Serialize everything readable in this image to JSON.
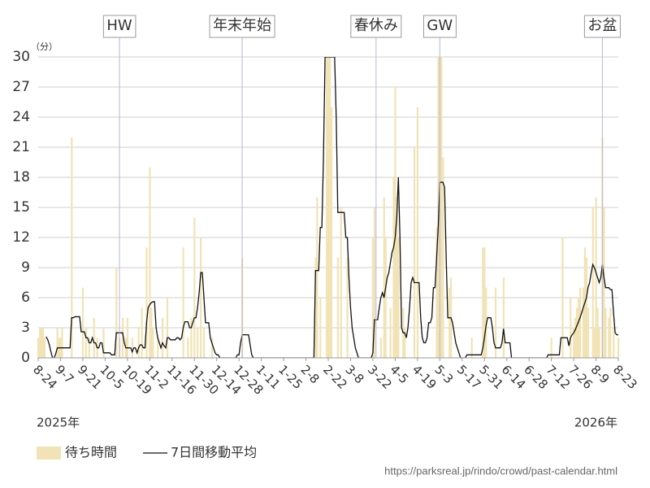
{
  "chart_data": {
    "type": "bar",
    "y_unit": "（分）",
    "years": [
      "2025年",
      "2026年"
    ],
    "source": "https://parksreal.jp/rindo/crowd/past-calendar.html",
    "ylim": [
      0,
      30
    ],
    "yticks": [
      0,
      3,
      6,
      9,
      12,
      15,
      18,
      21,
      24,
      27,
      30
    ],
    "grid": true,
    "annotations": [
      {
        "label": "HW",
        "x": 51
      },
      {
        "label": "年末年始",
        "x": 128
      },
      {
        "label": "春休み",
        "x": 212
      },
      {
        "label": "GW",
        "x": 252
      },
      {
        "label": "お盆",
        "x": 354
      }
    ],
    "categories": [
      "8-24",
      null,
      null,
      null,
      null,
      null,
      null,
      null,
      null,
      null,
      null,
      null,
      null,
      null,
      "9-7",
      null,
      null,
      null,
      null,
      null,
      null,
      null,
      null,
      null,
      null,
      null,
      null,
      null,
      "9-21",
      null,
      null,
      null,
      null,
      null,
      null,
      null,
      null,
      null,
      null,
      null,
      null,
      null,
      "10-5",
      null,
      null,
      null,
      null,
      null,
      null,
      null,
      null,
      null,
      null,
      null,
      null,
      null,
      "10-19",
      null,
      null,
      null,
      null,
      null,
      null,
      null,
      null,
      null,
      null,
      null,
      null,
      null,
      "11-2",
      null,
      null,
      null,
      null,
      null,
      null,
      null,
      null,
      null,
      null,
      null,
      null,
      null,
      "11-16",
      null,
      null,
      null,
      null,
      null,
      null,
      null,
      null,
      null,
      null,
      null,
      null,
      null,
      "11-30",
      null,
      null,
      null,
      null,
      null,
      null,
      null,
      null,
      null,
      null,
      null,
      null,
      null,
      "12-14",
      null,
      null,
      null,
      null,
      null,
      null,
      null,
      null,
      null,
      null,
      null,
      null,
      null,
      "12-28",
      null,
      null,
      null,
      null,
      null,
      null,
      null,
      null,
      null,
      null,
      null,
      null,
      null,
      "1-11",
      null,
      null,
      null,
      null,
      null,
      null,
      null,
      null,
      null,
      null,
      null,
      null,
      null,
      "1-25",
      null,
      null,
      null,
      null,
      null,
      null,
      null,
      null,
      null,
      null,
      null,
      null,
      null,
      "2-8",
      null,
      null,
      null,
      null,
      null,
      null,
      null,
      null,
      null,
      null,
      null,
      null,
      null,
      "2-22",
      null,
      null,
      null,
      null,
      null,
      null,
      null,
      null,
      null,
      null,
      null,
      null,
      null,
      "3-8",
      null,
      null,
      null,
      null,
      null,
      null,
      null,
      null,
      null,
      null,
      null,
      null,
      null,
      "3-22",
      null,
      null,
      null,
      null,
      null,
      null,
      null,
      null,
      null,
      null,
      null,
      null,
      null,
      "4-5",
      null,
      null,
      null,
      null,
      null,
      null,
      null,
      null,
      null,
      null,
      null,
      null,
      null,
      "4-19",
      null,
      null,
      null,
      null,
      null,
      null,
      null,
      null,
      null,
      null,
      null,
      null,
      null,
      "5-3",
      null,
      null,
      null,
      null,
      null,
      null,
      null,
      null,
      null,
      null,
      null,
      null,
      null,
      "5-17",
      null,
      null,
      null,
      null,
      null,
      null,
      null,
      null,
      null,
      null,
      null,
      null,
      null,
      "5-31",
      null,
      null,
      null,
      null,
      null,
      null,
      null,
      null,
      null,
      null,
      null,
      null,
      null,
      "6-14",
      null,
      null,
      null,
      null,
      null,
      null,
      null,
      null,
      null,
      null,
      null,
      null,
      null,
      "6-28",
      null,
      null,
      null,
      null,
      null,
      null,
      null,
      null,
      null,
      null,
      null,
      null,
      null,
      "7-12",
      null,
      null,
      null,
      null,
      null,
      null,
      null,
      null,
      null,
      null,
      null,
      null,
      null,
      "7-26",
      null,
      null,
      null,
      null,
      null,
      null,
      null,
      null,
      null,
      null,
      null,
      null,
      null,
      "8-9",
      null,
      null,
      null,
      null,
      null,
      null,
      null,
      null,
      null,
      null,
      null,
      null,
      null,
      "8-23"
    ],
    "series": [
      {
        "name": "待ち時間",
        "type": "bar",
        "color": "#f1e3b5",
        "values": [
          2,
          3,
          3,
          3,
          2,
          0,
          0,
          0,
          0,
          0,
          0,
          0,
          3,
          2,
          2,
          3,
          0,
          0,
          0,
          0,
          0,
          22,
          0,
          0,
          0,
          0,
          0,
          0,
          7,
          0,
          3,
          0,
          2,
          0,
          0,
          4,
          0,
          2,
          0,
          0,
          0,
          3,
          0,
          0,
          0,
          0,
          0,
          0,
          0,
          9,
          0,
          2,
          0,
          4,
          0,
          2,
          4,
          0,
          0,
          2,
          0,
          0,
          0,
          3,
          0,
          5,
          0,
          0,
          11,
          0,
          19,
          5,
          3,
          0,
          0,
          2,
          0,
          0,
          4,
          0,
          0,
          6,
          0,
          0,
          0,
          0,
          0,
          0,
          0,
          0,
          0,
          11,
          0,
          0,
          2,
          0,
          4,
          0,
          14,
          0,
          3,
          0,
          12,
          0,
          3,
          0,
          0,
          0,
          0,
          2,
          0,
          0,
          0,
          0,
          0,
          0,
          0,
          0,
          0,
          0,
          0,
          0,
          0,
          0,
          0,
          0,
          0,
          0,
          10,
          0,
          0,
          0,
          0,
          0,
          0,
          0,
          0,
          0,
          0,
          0,
          0,
          0,
          0,
          0,
          0,
          0,
          0,
          0,
          0,
          0,
          0,
          0,
          0,
          0,
          0,
          0,
          0,
          0,
          0,
          0,
          0,
          0,
          0,
          0,
          0,
          0,
          0,
          0,
          0,
          0,
          0,
          0,
          0,
          0,
          10,
          16,
          0,
          6,
          0,
          0,
          0,
          30,
          30,
          30,
          25,
          0,
          0,
          0,
          10,
          0,
          15,
          0,
          0,
          0,
          10,
          0,
          0,
          0,
          0,
          0,
          0,
          0,
          0,
          0,
          0,
          0,
          0,
          0,
          0,
          0,
          12,
          15,
          0,
          0,
          0,
          2,
          0,
          16,
          12,
          0,
          0,
          5,
          0,
          18,
          27,
          16,
          12,
          0,
          0,
          5,
          3,
          0,
          0,
          0,
          0,
          0,
          21,
          0,
          25,
          0,
          0,
          0,
          0,
          0,
          0,
          0,
          0,
          0,
          0,
          0,
          13,
          30,
          30,
          30,
          20,
          0,
          0,
          0,
          7,
          8,
          0,
          0,
          0,
          0,
          0,
          0,
          0,
          0,
          0,
          0,
          0,
          0,
          2,
          0,
          0,
          0,
          0,
          0,
          0,
          11,
          11,
          7,
          0,
          0,
          0,
          0,
          0,
          7,
          0,
          0,
          0,
          0,
          8,
          0,
          0,
          0,
          0,
          0,
          0,
          0,
          0,
          0,
          0,
          0,
          0,
          0,
          0,
          0,
          0,
          0,
          0,
          0,
          0,
          0,
          0,
          0,
          0,
          0,
          0,
          0,
          0,
          0,
          2,
          0,
          0,
          0,
          0,
          0,
          0,
          12,
          0,
          0,
          0,
          0,
          6,
          0,
          3,
          4,
          5,
          6,
          7,
          0,
          7,
          11,
          10,
          5,
          0,
          0,
          15,
          3,
          16,
          5,
          3,
          0,
          22,
          15,
          5,
          0,
          4,
          5,
          0,
          3,
          0,
          0,
          2
        ]
      },
      {
        "name": "7日間移動平均",
        "type": "line",
        "color": "#111111",
        "values": [
          null,
          null,
          null,
          null,
          null,
          2.1,
          1.8,
          1.3,
          0.6,
          0,
          0,
          0.4,
          1,
          1,
          1,
          1,
          1,
          1,
          1,
          1,
          1,
          4,
          4,
          4.1,
          4.1,
          4.1,
          4.1,
          2.6,
          2.6,
          2.6,
          2,
          2,
          1.5,
          1.5,
          2,
          1.5,
          1.5,
          1,
          1,
          1.5,
          1.5,
          0.5,
          0.5,
          0.5,
          0.5,
          0.5,
          0.3,
          0.3,
          0.3,
          2.5,
          2.5,
          2.5,
          2.5,
          2.5,
          1.5,
          1,
          1,
          1,
          1,
          0.6,
          1,
          1,
          0.5,
          1,
          1.3,
          1.3,
          1,
          1,
          3.5,
          5,
          5.3,
          5.5,
          5.6,
          5.6,
          3,
          2,
          1.5,
          1,
          1.5,
          1.2,
          1,
          2,
          2,
          1.8,
          1.8,
          1.8,
          1.8,
          2,
          2,
          1.8,
          2,
          3,
          3.6,
          3.6,
          3.6,
          3,
          3,
          3.5,
          4,
          4,
          5,
          6.5,
          8.5,
          8.5,
          6,
          3.5,
          3.5,
          3.5,
          2,
          1.5,
          1,
          0.5,
          0.3,
          0.3,
          0,
          0,
          0,
          0,
          0,
          0,
          0,
          0,
          0,
          0,
          0,
          0.3,
          0.3,
          1.5,
          2.3,
          2.3,
          2.3,
          2.3,
          2.3,
          1.3,
          0.3,
          0,
          0,
          0,
          0,
          0,
          0,
          0,
          0,
          0,
          0,
          0,
          0,
          0,
          0,
          0,
          0,
          0,
          0,
          0,
          0,
          0,
          0,
          0,
          0,
          0,
          0,
          0,
          0,
          0,
          0,
          0,
          0,
          0,
          0,
          0,
          0,
          0,
          0,
          0,
          8.7,
          8.7,
          8.7,
          13,
          13,
          20,
          30,
          30,
          30,
          30,
          30,
          30,
          30,
          24,
          14.5,
          14.5,
          14.5,
          14.5,
          14.5,
          12,
          12,
          8,
          5,
          3,
          2,
          1,
          0.5,
          0,
          0,
          0,
          0,
          0,
          0,
          0,
          0,
          0,
          0.5,
          3.8,
          3.8,
          3.8,
          5,
          6,
          6.5,
          6,
          7,
          8,
          8.5,
          9.5,
          10.5,
          11,
          12,
          14,
          18,
          12,
          3,
          2.5,
          2.5,
          2,
          3,
          5,
          7.5,
          8,
          7.5,
          7.5,
          7.5,
          7.5,
          4,
          2,
          1.5,
          1.5,
          2,
          3.5,
          3.5,
          4,
          7,
          7,
          10,
          13,
          17.5,
          17.5,
          17.5,
          17,
          10,
          4,
          4,
          4,
          3.5,
          2.5,
          1.5,
          1,
          0.5,
          0,
          0,
          0,
          0,
          0.3,
          0.3,
          0.3,
          0.3,
          0.3,
          0.3,
          0.3,
          0.3,
          0.3,
          0.3,
          1,
          2,
          3.2,
          4,
          4,
          4,
          3,
          1.5,
          1,
          1,
          1,
          1,
          1.5,
          2.9,
          1.5,
          1.5,
          1.5,
          1.5,
          0,
          0,
          0,
          0,
          0,
          0,
          0,
          0,
          0,
          0,
          0,
          0,
          0,
          0,
          0,
          0,
          0,
          0,
          0,
          0,
          0,
          0,
          0,
          0.3,
          0.3,
          0.3,
          0.3,
          0.3,
          0.3,
          0.3,
          0.3,
          2,
          2,
          2,
          2,
          2,
          1.2,
          2,
          2.3,
          2.5,
          2.8,
          3.2,
          3.6,
          4,
          4.5,
          5,
          5.5,
          6,
          7,
          7.5,
          8.5,
          9.3,
          9,
          8.5,
          8,
          7.5,
          8,
          9.3,
          8,
          7,
          7,
          7,
          6.8,
          6.8,
          4.5,
          2.5,
          2.3,
          2.3
        ]
      }
    ]
  }
}
